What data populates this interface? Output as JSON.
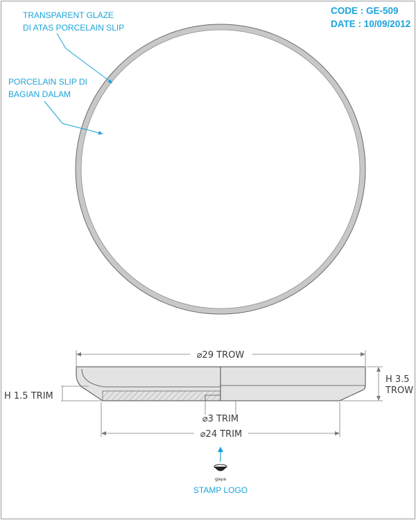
{
  "header": {
    "code": "CODE : GE-509",
    "date": "DATE : 10/09/2012"
  },
  "annotations": {
    "glaze_line1": "TRANSPARENT GLAZE",
    "glaze_line2": "DI ATAS PORCELAIN SLIP",
    "slip_line1": "PORCELAIN SLIP DI",
    "slip_line2": "BAGIAN DALAM"
  },
  "dimensions": {
    "outer_diameter": "⌀29 TROW",
    "height_total_1": "H 3.5",
    "height_total_2": "TROW",
    "height_foot": "H 1.5 TRIM",
    "trim_small": "⌀3 TRIM",
    "foot_diameter": "⌀24 TRIM"
  },
  "stamp": {
    "logo_text": "gaya",
    "label": "STAMP LOGO"
  },
  "colors": {
    "accent": "#1aa3d9",
    "rim": "#c8c8c8",
    "body": "#e3e3e3",
    "line": "#4a4a4a"
  }
}
